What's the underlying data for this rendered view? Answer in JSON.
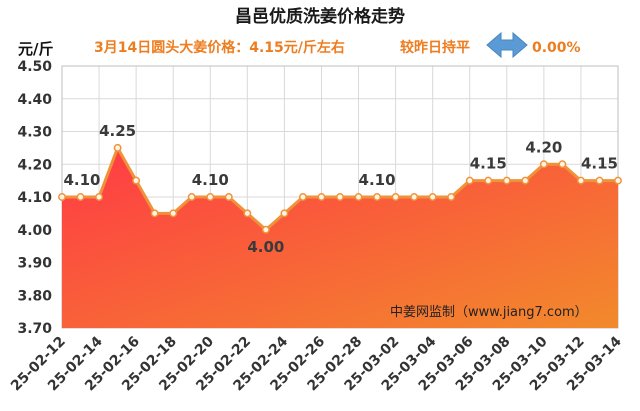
{
  "chart_data": {
    "type": "area",
    "title": "昌邑优质洗姜价格走势",
    "subtitle": "3月14日圆头大姜价格：4.15元/斤左右",
    "comparison": "较昨日持平",
    "change": "0.00%",
    "ylabel": "元/斤",
    "ylim": [
      3.7,
      4.5
    ],
    "yticks": [
      "4.50",
      "4.40",
      "4.30",
      "4.20",
      "4.10",
      "4.00",
      "3.90",
      "3.80",
      "3.70"
    ],
    "x": [
      "25-02-12",
      "25-02-13",
      "25-02-14",
      "25-02-15",
      "25-02-16",
      "25-02-17",
      "25-02-18",
      "25-02-19",
      "25-02-20",
      "25-02-21",
      "25-02-22",
      "25-02-23",
      "25-02-24",
      "25-02-25",
      "25-02-26",
      "25-02-27",
      "25-02-28",
      "25-03-01",
      "25-03-02",
      "25-03-03",
      "25-03-04",
      "25-03-05",
      "25-03-06",
      "25-03-07",
      "25-03-08",
      "25-03-09",
      "25-03-10",
      "25-03-11",
      "25-03-12",
      "25-03-13",
      "25-03-14"
    ],
    "xtick_labels": [
      "25-02-12",
      "25-02-14",
      "25-02-16",
      "25-02-18",
      "25-02-20",
      "25-02-22",
      "25-02-24",
      "25-02-26",
      "25-02-28",
      "25-03-02",
      "25-03-04",
      "25-03-06",
      "25-03-08",
      "25-03-10",
      "25-03-12",
      "25-03-14"
    ],
    "values": [
      4.1,
      4.1,
      4.1,
      4.25,
      4.15,
      4.05,
      4.05,
      4.1,
      4.1,
      4.1,
      4.05,
      4.0,
      4.05,
      4.1,
      4.1,
      4.1,
      4.1,
      4.1,
      4.1,
      4.1,
      4.1,
      4.1,
      4.15,
      4.15,
      4.15,
      4.15,
      4.2,
      4.2,
      4.15,
      4.15,
      4.15
    ],
    "data_labels": [
      {
        "index": 0,
        "text": "4.10"
      },
      {
        "index": 3,
        "text": "4.25"
      },
      {
        "index": 8,
        "text": "4.10"
      },
      {
        "index": 11,
        "text": "4.00"
      },
      {
        "index": 17,
        "text": "4.10"
      },
      {
        "index": 23,
        "text": "4.15"
      },
      {
        "index": 26,
        "text": "4.20"
      },
      {
        "index": 29,
        "text": "4.15"
      }
    ],
    "grid": true,
    "colors": {
      "line": "#f0923a",
      "fill_top": "#ff3a45",
      "fill_bottom": "#f28a2c",
      "subtitle": "#ee7d1f",
      "arrow": "#5b9bd5",
      "grid": "#d9d9d9"
    }
  },
  "watermark": "中姜网监制（www.jiang7.com）",
  "arrow_icon": "left-right-arrow-icon"
}
